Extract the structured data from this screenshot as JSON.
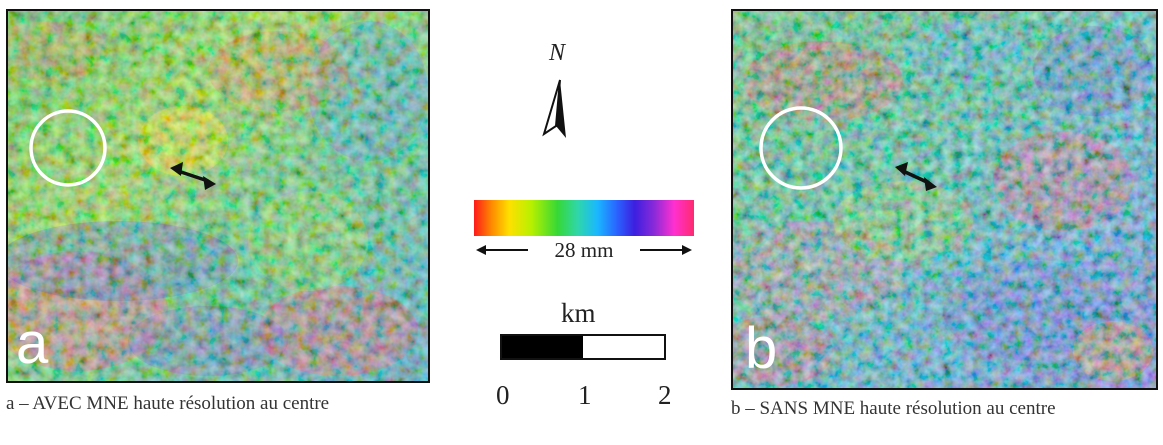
{
  "figure": {
    "panel_a": {
      "letter": "a",
      "caption": "a – AVEC MNE haute résolution au centre"
    },
    "panel_b": {
      "letter": "b",
      "caption": "b – SANS MNE haute résolution au centre"
    },
    "north": {
      "label": "N"
    },
    "colorbar": {
      "label": "28 mm",
      "colors": [
        "#ff1a1a",
        "#ffe000",
        "#36d836",
        "#1ab8ff",
        "#3d1fe0",
        "#ff30d0",
        "#ff2a6e"
      ]
    },
    "scale": {
      "unit": "km",
      "ticks": [
        "0",
        "1",
        "2"
      ]
    },
    "annotation_circle_color": "#ffffff",
    "annotation_arrow_color": "#111111"
  }
}
